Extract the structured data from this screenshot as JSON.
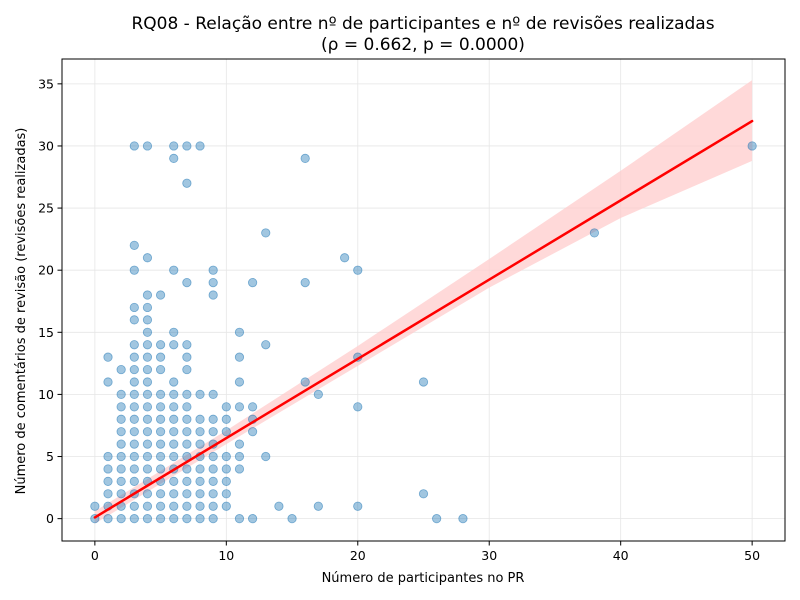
{
  "chart_data": {
    "type": "scatter",
    "title_line1": "RQ08 - Relação entre nº de participantes e nº de revisões realizadas",
    "title_line2": "(ρ = 0.662, p = 0.0000)",
    "xlabel": "Número de participantes no PR",
    "ylabel": "Número de comentários de revisão (revisões realizadas)",
    "xlim": [
      -2.5,
      52.5
    ],
    "ylim": [
      -1.8,
      37
    ],
    "xticks": [
      0,
      10,
      20,
      30,
      40,
      50
    ],
    "yticks": [
      0,
      5,
      10,
      15,
      20,
      25,
      30,
      35
    ],
    "grid": true,
    "point_color": "#1f77b4",
    "regression_color": "#ff0000",
    "band_color": "#ffcccc",
    "regression": {
      "x0": 0,
      "y0": 0.1,
      "x1": 50,
      "y1": 32
    },
    "confidence_band": {
      "x": [
        0,
        10,
        20,
        30,
        40,
        50
      ],
      "upper": [
        0.6,
        7.1,
        13.9,
        20.9,
        28.0,
        35.3
      ],
      "lower": [
        -0.4,
        6.0,
        12.3,
        18.6,
        24.2,
        28.8
      ]
    },
    "points": [
      [
        0,
        0
      ],
      [
        0,
        1
      ],
      [
        1,
        0
      ],
      [
        1,
        1
      ],
      [
        1,
        2
      ],
      [
        1,
        3
      ],
      [
        1,
        4
      ],
      [
        1,
        5
      ],
      [
        1,
        11
      ],
      [
        1,
        13
      ],
      [
        2,
        0
      ],
      [
        2,
        1
      ],
      [
        2,
        2
      ],
      [
        2,
        3
      ],
      [
        2,
        4
      ],
      [
        2,
        5
      ],
      [
        2,
        6
      ],
      [
        2,
        7
      ],
      [
        2,
        8
      ],
      [
        2,
        9
      ],
      [
        2,
        10
      ],
      [
        2,
        12
      ],
      [
        3,
        0
      ],
      [
        3,
        1
      ],
      [
        3,
        2
      ],
      [
        3,
        3
      ],
      [
        3,
        4
      ],
      [
        3,
        5
      ],
      [
        3,
        6
      ],
      [
        3,
        7
      ],
      [
        3,
        8
      ],
      [
        3,
        9
      ],
      [
        3,
        10
      ],
      [
        3,
        11
      ],
      [
        3,
        12
      ],
      [
        3,
        13
      ],
      [
        3,
        14
      ],
      [
        3,
        16
      ],
      [
        3,
        17
      ],
      [
        3,
        20
      ],
      [
        3,
        22
      ],
      [
        3,
        30
      ],
      [
        4,
        0
      ],
      [
        4,
        1
      ],
      [
        4,
        2
      ],
      [
        4,
        3
      ],
      [
        4,
        4
      ],
      [
        4,
        5
      ],
      [
        4,
        6
      ],
      [
        4,
        7
      ],
      [
        4,
        8
      ],
      [
        4,
        9
      ],
      [
        4,
        10
      ],
      [
        4,
        11
      ],
      [
        4,
        12
      ],
      [
        4,
        13
      ],
      [
        4,
        14
      ],
      [
        4,
        15
      ],
      [
        4,
        16
      ],
      [
        4,
        17
      ],
      [
        4,
        18
      ],
      [
        4,
        21
      ],
      [
        4,
        30
      ],
      [
        5,
        0
      ],
      [
        5,
        1
      ],
      [
        5,
        2
      ],
      [
        5,
        3
      ],
      [
        5,
        4
      ],
      [
        5,
        5
      ],
      [
        5,
        6
      ],
      [
        5,
        7
      ],
      [
        5,
        8
      ],
      [
        5,
        9
      ],
      [
        5,
        10
      ],
      [
        5,
        12
      ],
      [
        5,
        13
      ],
      [
        5,
        14
      ],
      [
        5,
        18
      ],
      [
        6,
        0
      ],
      [
        6,
        1
      ],
      [
        6,
        2
      ],
      [
        6,
        3
      ],
      [
        6,
        4
      ],
      [
        6,
        5
      ],
      [
        6,
        6
      ],
      [
        6,
        7
      ],
      [
        6,
        8
      ],
      [
        6,
        9
      ],
      [
        6,
        10
      ],
      [
        6,
        11
      ],
      [
        6,
        14
      ],
      [
        6,
        15
      ],
      [
        6,
        20
      ],
      [
        6,
        29
      ],
      [
        6,
        30
      ],
      [
        7,
        0
      ],
      [
        7,
        1
      ],
      [
        7,
        2
      ],
      [
        7,
        3
      ],
      [
        7,
        4
      ],
      [
        7,
        5
      ],
      [
        7,
        6
      ],
      [
        7,
        7
      ],
      [
        7,
        8
      ],
      [
        7,
        9
      ],
      [
        7,
        10
      ],
      [
        7,
        12
      ],
      [
        7,
        13
      ],
      [
        7,
        14
      ],
      [
        7,
        19
      ],
      [
        7,
        27
      ],
      [
        7,
        30
      ],
      [
        8,
        0
      ],
      [
        8,
        1
      ],
      [
        8,
        2
      ],
      [
        8,
        3
      ],
      [
        8,
        4
      ],
      [
        8,
        5
      ],
      [
        8,
        6
      ],
      [
        8,
        7
      ],
      [
        8,
        8
      ],
      [
        8,
        10
      ],
      [
        8,
        30
      ],
      [
        9,
        0
      ],
      [
        9,
        1
      ],
      [
        9,
        2
      ],
      [
        9,
        3
      ],
      [
        9,
        4
      ],
      [
        9,
        5
      ],
      [
        9,
        6
      ],
      [
        9,
        7
      ],
      [
        9,
        8
      ],
      [
        9,
        10
      ],
      [
        9,
        18
      ],
      [
        9,
        19
      ],
      [
        9,
        20
      ],
      [
        10,
        1
      ],
      [
        10,
        2
      ],
      [
        10,
        3
      ],
      [
        10,
        4
      ],
      [
        10,
        5
      ],
      [
        10,
        7
      ],
      [
        10,
        8
      ],
      [
        10,
        9
      ],
      [
        11,
        0
      ],
      [
        11,
        4
      ],
      [
        11,
        5
      ],
      [
        11,
        6
      ],
      [
        11,
        9
      ],
      [
        11,
        11
      ],
      [
        11,
        13
      ],
      [
        11,
        15
      ],
      [
        12,
        0
      ],
      [
        12,
        7
      ],
      [
        12,
        8
      ],
      [
        12,
        9
      ],
      [
        12,
        19
      ],
      [
        13,
        5
      ],
      [
        13,
        14
      ],
      [
        13,
        23
      ],
      [
        14,
        1
      ],
      [
        15,
        0
      ],
      [
        16,
        11
      ],
      [
        16,
        19
      ],
      [
        16,
        29
      ],
      [
        17,
        1
      ],
      [
        17,
        10
      ],
      [
        19,
        21
      ],
      [
        20,
        1
      ],
      [
        20,
        9
      ],
      [
        20,
        13
      ],
      [
        20,
        20
      ],
      [
        25,
        2
      ],
      [
        25,
        11
      ],
      [
        26,
        0
      ],
      [
        28,
        0
      ],
      [
        38,
        23
      ],
      [
        50,
        30
      ]
    ]
  }
}
